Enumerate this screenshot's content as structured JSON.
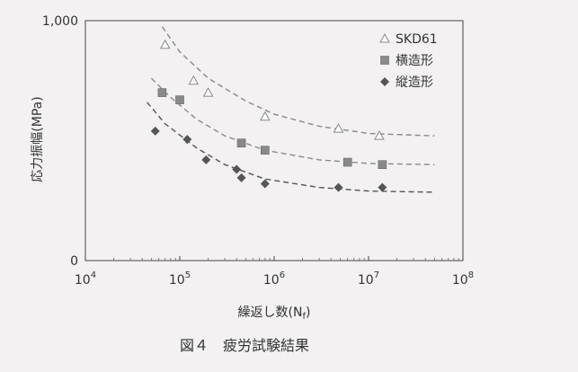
{
  "chart_data": {
    "type": "scatter",
    "xscale": "log",
    "xlim": [
      10000,
      100000000
    ],
    "ylim": [
      0,
      1000
    ],
    "xticks": [
      {
        "value": 10000,
        "base": "10",
        "exp": "4"
      },
      {
        "value": 100000,
        "base": "10",
        "exp": "5"
      },
      {
        "value": 1000000,
        "base": "10",
        "exp": "6"
      },
      {
        "value": 10000000,
        "base": "10",
        "exp": "7"
      },
      {
        "value": 100000000,
        "base": "10",
        "exp": "8"
      }
    ],
    "yticks": [
      {
        "value": 0,
        "label": "0"
      },
      {
        "value": 1000,
        "label": "1,000"
      }
    ],
    "xlabel": {
      "main": "繰返し数(N",
      "sub": "f",
      "end": ")"
    },
    "ylabel": "応力振幅(MPa)",
    "caption": "図４　疲労試験結果",
    "legend_position": "top-right",
    "grid": false,
    "series": [
      {
        "name": "SKD61",
        "marker": "triangle-open",
        "color": "#888888",
        "points": [
          [
            70000,
            900
          ],
          [
            140000,
            750
          ],
          [
            200000,
            700
          ],
          [
            800000,
            600
          ],
          [
            4800000,
            550
          ],
          [
            13000000,
            520
          ]
        ],
        "fit": [
          [
            65000,
            975
          ],
          [
            100000,
            870
          ],
          [
            200000,
            760
          ],
          [
            500000,
            665
          ],
          [
            1000000,
            610
          ],
          [
            3000000,
            560
          ],
          [
            10000000,
            530
          ],
          [
            50000000,
            520
          ]
        ]
      },
      {
        "name": "横造形",
        "marker": "square",
        "color": "#8a8a8a",
        "points": [
          [
            65000,
            700
          ],
          [
            100000,
            670
          ],
          [
            450000,
            490
          ],
          [
            800000,
            460
          ],
          [
            6000000,
            410
          ],
          [
            14000000,
            400
          ]
        ],
        "fit": [
          [
            50000,
            760
          ],
          [
            80000,
            680
          ],
          [
            150000,
            590
          ],
          [
            300000,
            520
          ],
          [
            800000,
            460
          ],
          [
            3000000,
            420
          ],
          [
            10000000,
            405
          ],
          [
            50000000,
            400
          ]
        ]
      },
      {
        "name": "縦造形",
        "marker": "diamond",
        "color": "#555555",
        "points": [
          [
            55000,
            540
          ],
          [
            120000,
            505
          ],
          [
            190000,
            420
          ],
          [
            400000,
            380
          ],
          [
            450000,
            345
          ],
          [
            800000,
            320
          ],
          [
            4800000,
            305
          ],
          [
            14000000,
            305
          ]
        ],
        "fit": [
          [
            45000,
            660
          ],
          [
            70000,
            570
          ],
          [
            150000,
            470
          ],
          [
            300000,
            400
          ],
          [
            800000,
            340
          ],
          [
            3000000,
            305
          ],
          [
            10000000,
            290
          ],
          [
            50000000,
            285
          ]
        ]
      }
    ]
  }
}
